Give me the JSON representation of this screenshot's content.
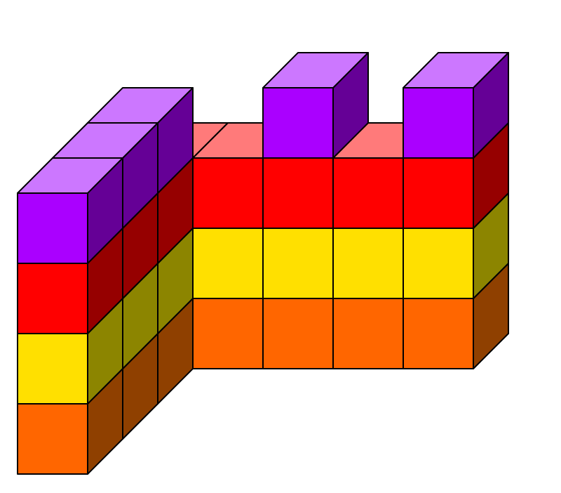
{
  "colors": {
    "orange": {
      "front": "#FF6600",
      "side": "#8F4000",
      "top": "#FF9A55"
    },
    "yellow": {
      "front": "#FFE000",
      "side": "#8C8500",
      "top": "#FFF080"
    },
    "red": {
      "front": "#FF0000",
      "side": "#960000",
      "top": "#FF7A7A"
    },
    "purple": {
      "front": "#AA00FF",
      "side": "#650096",
      "top": "#CC77FF"
    }
  },
  "structure": {
    "description_layers": [
      "orange",
      "yellow",
      "red",
      "purple"
    ],
    "back_row_columns": 4,
    "side_row_depth": 4,
    "battlement_cubes": 5
  }
}
